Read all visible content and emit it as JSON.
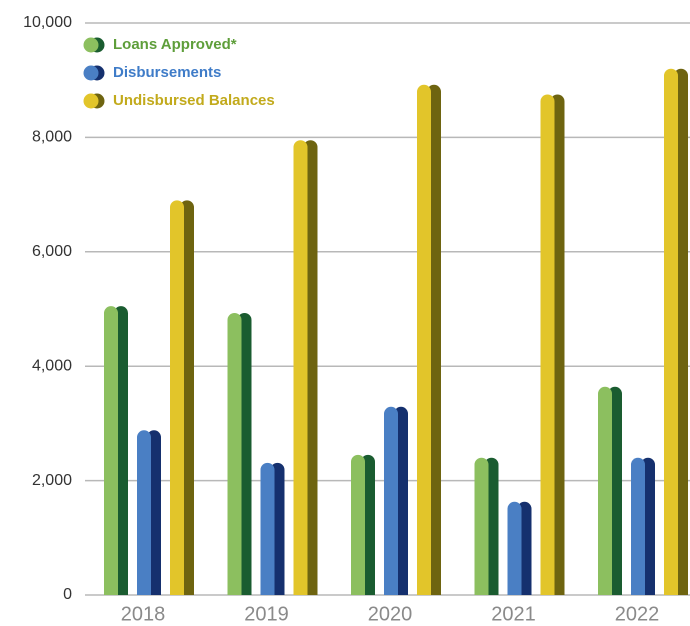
{
  "chart_data": {
    "type": "bar",
    "categories": [
      "2018",
      "2019",
      "2020",
      "2021",
      "2022"
    ],
    "series": [
      {
        "name": "Loans Approved*",
        "color": "#8cbf5f",
        "shade": "#1a5c30",
        "legend_color": "#5e9e3a",
        "values": [
          5050,
          4930,
          2450,
          2400,
          3640
        ]
      },
      {
        "name": "Disbursements",
        "color": "#4a7fc4",
        "shade": "#15306e",
        "legend_color": "#3f7cc8",
        "values": [
          2880,
          2310,
          3290,
          1630,
          2400
        ]
      },
      {
        "name": "Undisbursed Balances",
        "color": "#e2c52a",
        "shade": "#6e6410",
        "legend_color": "#c2aa1c",
        "values": [
          6900,
          7950,
          8920,
          8750,
          9200
        ]
      }
    ],
    "ylim": [
      0,
      10000
    ],
    "yticks": [
      0,
      {
        "value": 2000,
        "label": "2,000"
      },
      {
        "value": 4000,
        "label": "4,000"
      },
      {
        "value": 6000,
        "label": "6,000"
      },
      {
        "value": 8000,
        "label": "8,000"
      },
      {
        "value": 10000,
        "label": "10,000"
      }
    ],
    "grid": true,
    "legend": "top-left"
  }
}
